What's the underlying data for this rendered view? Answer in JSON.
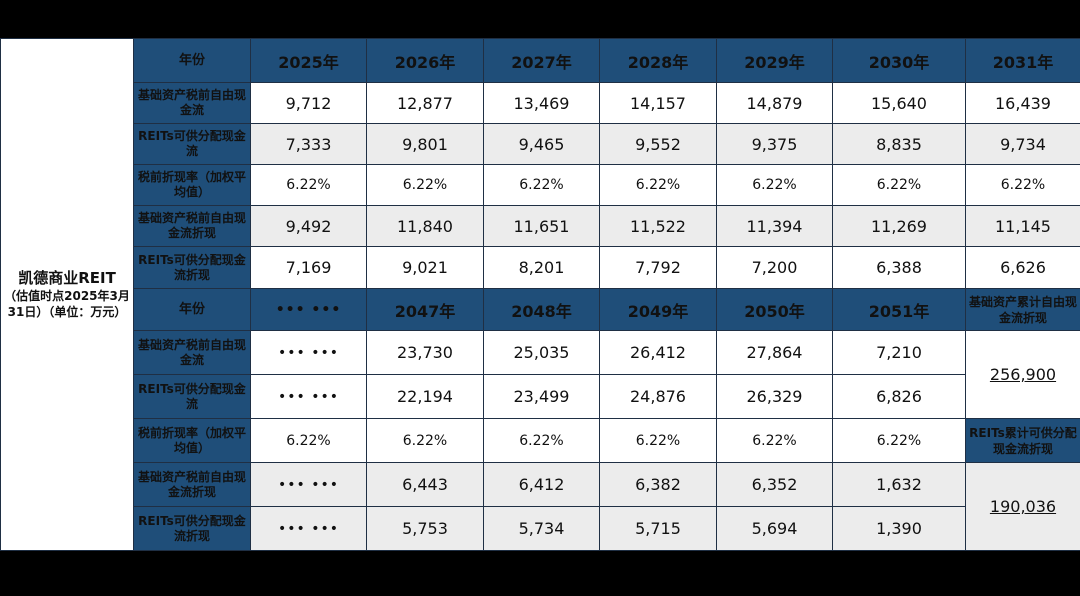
{
  "entity": {
    "name": "凯德商业REIT",
    "note": "（估值时点2025年3月31日）（单位：万元）"
  },
  "labels": {
    "year": "年份",
    "fcf": "基础资产税前自由现金流",
    "dist": "REITs可供分配现金流",
    "rate": "税前折现率（加权平均值）",
    "fcf_pv": "基础资产税前自由现金流折现",
    "dist_pv": "REITs可供分配现金流折现"
  },
  "top": {
    "years": [
      "2025年",
      "2026年",
      "2027年",
      "2028年",
      "2029年",
      "2030年",
      "2031年"
    ],
    "fcf": [
      "9,712",
      "12,877",
      "13,469",
      "14,157",
      "14,879",
      "15,640",
      "16,439"
    ],
    "dist": [
      "7,333",
      "9,801",
      "9,465",
      "9,552",
      "9,375",
      "8,835",
      "9,734"
    ],
    "rate": [
      "6.22%",
      "6.22%",
      "6.22%",
      "6.22%",
      "6.22%",
      "6.22%",
      "6.22%"
    ],
    "fcf_pv": [
      "9,492",
      "11,840",
      "11,651",
      "11,522",
      "11,394",
      "11,269",
      "11,145"
    ],
    "dist_pv": [
      "7,169",
      "9,021",
      "8,201",
      "7,792",
      "7,200",
      "6,388",
      "6,626"
    ]
  },
  "bottom": {
    "years": [
      "••• •••",
      "2047年",
      "2048年",
      "2049年",
      "2050年",
      "2051年"
    ],
    "fcf": [
      "••• •••",
      "23,730",
      "25,035",
      "26,412",
      "27,864",
      "7,210"
    ],
    "dist": [
      "••• •••",
      "22,194",
      "23,499",
      "24,876",
      "26,329",
      "6,826"
    ],
    "rate": [
      "6.22%",
      "6.22%",
      "6.22%",
      "6.22%",
      "6.22%",
      "6.22%"
    ],
    "fcf_pv": [
      "••• •••",
      "6,443",
      "6,412",
      "6,382",
      "6,352",
      "1,632"
    ],
    "dist_pv": [
      "••• •••",
      "5,753",
      "5,734",
      "5,715",
      "5,694",
      "1,390"
    ]
  },
  "totals": {
    "fcf_label": "基础资产累计自由现金流折现",
    "fcf_value": "256,900",
    "dist_label": "REITs累计可供分配现金流折现",
    "dist_value": "190,036"
  }
}
